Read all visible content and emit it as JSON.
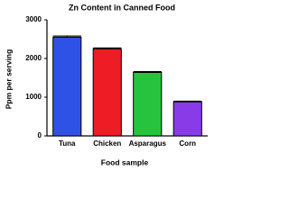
{
  "chart_data": {
    "type": "bar",
    "title": "Zn Content in Canned Food",
    "x_label": "Food sample",
    "y_label": "Ppm per serving",
    "categories": [
      "Tuna",
      "Chicken",
      "Asparagus",
      "Corn"
    ],
    "values": [
      2550,
      2250,
      1640,
      880
    ],
    "errors": [
      30,
      20,
      20,
      15
    ],
    "colors": [
      "#2f52e6",
      "#ee1c24",
      "#26c43c",
      "#8a3be8"
    ],
    "ylim": [
      0,
      3000
    ],
    "yticks": [
      0,
      1000,
      2000,
      3000
    ],
    "grid": false
  }
}
